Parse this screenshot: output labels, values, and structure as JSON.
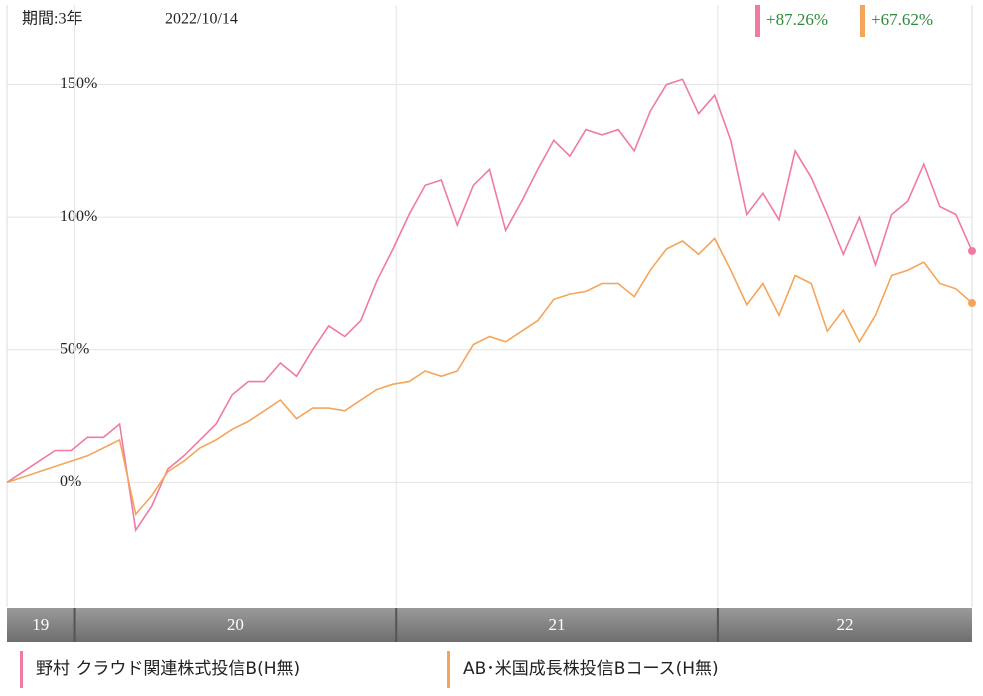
{
  "chart_data": {
    "type": "line",
    "period_label": "期間:3年",
    "date_label": "2022/10/14",
    "x": [
      19.79,
      19.84,
      19.89,
      19.94,
      19.99,
      20.04,
      20.09,
      20.14,
      20.19,
      20.24,
      20.29,
      20.34,
      20.39,
      20.44,
      20.49,
      20.54,
      20.59,
      20.64,
      20.69,
      20.74,
      20.79,
      20.84,
      20.89,
      20.94,
      20.99,
      21.04,
      21.09,
      21.14,
      21.19,
      21.24,
      21.29,
      21.34,
      21.39,
      21.44,
      21.49,
      21.54,
      21.59,
      21.64,
      21.69,
      21.74,
      21.79,
      21.84,
      21.89,
      21.94,
      21.99,
      22.04,
      22.09,
      22.14,
      22.19,
      22.24,
      22.29,
      22.34,
      22.39,
      22.44,
      22.49,
      22.54,
      22.59,
      22.64,
      22.69,
      22.74,
      22.79
    ],
    "xlim": [
      19.79,
      22.79
    ],
    "xticks": [
      20,
      21,
      22
    ],
    "year_bands": [
      "19",
      "20",
      "21",
      "22"
    ],
    "ylim": [
      -47,
      180
    ],
    "yticks": [
      {
        "value": 0,
        "label": "0%"
      },
      {
        "value": 50,
        "label": "50%"
      },
      {
        "value": 100,
        "label": "100%"
      },
      {
        "value": 150,
        "label": "150%"
      }
    ],
    "grid": true,
    "series": [
      {
        "name": "野村 クラウド関連株式投信B(H無)",
        "color": "#f07aa5",
        "change_label": "+87.26%",
        "values": [
          0,
          4,
          8,
          12,
          12,
          17,
          17,
          22,
          -18,
          -9,
          5,
          10,
          16,
          22,
          33,
          38,
          38,
          45,
          40,
          50,
          59,
          55,
          61,
          76,
          88,
          101,
          112,
          114,
          97,
          112,
          118,
          95,
          106,
          118,
          129,
          123,
          133,
          131,
          133,
          125,
          140,
          150,
          152,
          139,
          146,
          129,
          101,
          109,
          99,
          125,
          115,
          101,
          86,
          100,
          82,
          101,
          106,
          120,
          104,
          101,
          87.26
        ]
      },
      {
        "name": "AB･米国成長株投信Bコース(H無)",
        "color": "#f5a55a",
        "change_label": "+67.62%",
        "values": [
          0,
          2,
          4,
          6,
          8,
          10,
          13,
          16,
          -12,
          -5,
          4,
          8,
          13,
          16,
          20,
          23,
          27,
          31,
          24,
          28,
          28,
          27,
          31,
          35,
          37,
          38,
          42,
          40,
          42,
          52,
          55,
          53,
          57,
          61,
          69,
          71,
          72,
          75,
          75,
          70,
          80,
          88,
          91,
          86,
          92,
          80,
          67,
          75,
          63,
          78,
          75,
          57,
          65,
          53,
          63,
          78,
          80,
          83,
          75,
          73,
          67.62
        ]
      }
    ]
  }
}
